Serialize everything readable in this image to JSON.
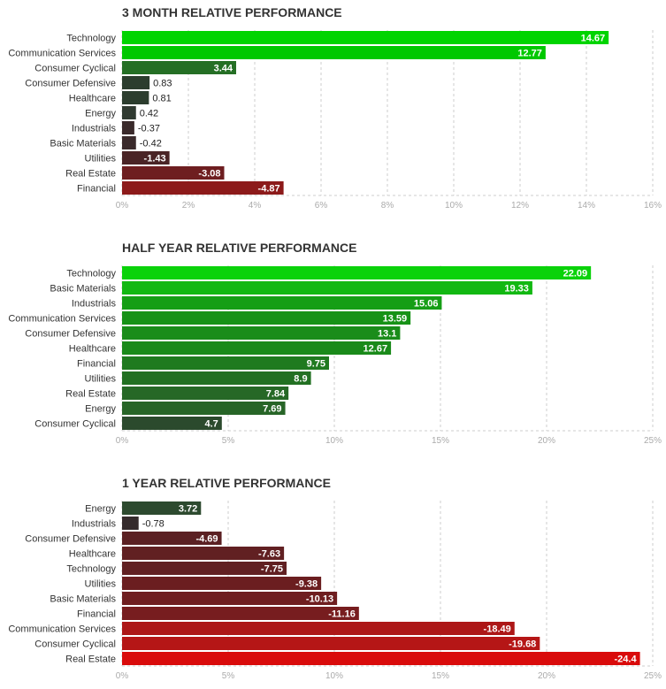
{
  "chart_data": [
    {
      "type": "bar",
      "orientation": "horizontal",
      "title": "3 MONTH RELATIVE PERFORMANCE",
      "categories": [
        "Technology",
        "Communication Services",
        "Consumer Cyclical",
        "Consumer Defensive",
        "Healthcare",
        "Energy",
        "Industrials",
        "Basic Materials",
        "Utilities",
        "Real Estate",
        "Financial"
      ],
      "values": [
        14.67,
        12.77,
        3.44,
        0.83,
        0.81,
        0.42,
        -0.37,
        -0.42,
        -1.43,
        -3.08,
        -4.87
      ],
      "value_labels": [
        "14.67",
        "12.77",
        "3.44",
        "0.83",
        "0.81",
        "0.42",
        "-0.37",
        "-0.42",
        "-1.43",
        "-3.08",
        "-4.87"
      ],
      "xlim": [
        0,
        16
      ],
      "xticks": [
        0,
        2,
        4,
        6,
        8,
        10,
        12,
        14,
        16
      ],
      "xtick_labels": [
        "0%",
        "2%",
        "4%",
        "6%",
        "8%",
        "10%",
        "12%",
        "14%",
        "16%"
      ],
      "colors": [
        "#00d400",
        "#00c800",
        "#256f25",
        "#2c3d2e",
        "#2c3d2e",
        "#303a31",
        "#3a2a2b",
        "#3a2a2b",
        "#4a2426",
        "#6e1e20",
        "#8c1a1a"
      ]
    },
    {
      "type": "bar",
      "orientation": "horizontal",
      "title": "HALF YEAR RELATIVE PERFORMANCE",
      "categories": [
        "Technology",
        "Basic Materials",
        "Industrials",
        "Communication Services",
        "Consumer Defensive",
        "Healthcare",
        "Financial",
        "Utilities",
        "Real Estate",
        "Energy",
        "Consumer Cyclical"
      ],
      "values": [
        22.09,
        19.33,
        15.06,
        13.59,
        13.1,
        12.67,
        9.75,
        8.9,
        7.84,
        7.69,
        4.7
      ],
      "value_labels": [
        "22.09",
        "19.33",
        "15.06",
        "13.59",
        "13.1",
        "12.67",
        "9.75",
        "8.9",
        "7.84",
        "7.69",
        "4.7"
      ],
      "xlim": [
        0,
        25
      ],
      "xticks": [
        0,
        5,
        10,
        15,
        20,
        25
      ],
      "xtick_labels": [
        "0%",
        "5%",
        "10%",
        "15%",
        "20%",
        "25%"
      ],
      "colors": [
        "#0ad20a",
        "#12b812",
        "#159e15",
        "#179217",
        "#1a8c1a",
        "#1a8a1a",
        "#1f7a1f",
        "#227022",
        "#266826",
        "#276527",
        "#2b4a2d"
      ]
    },
    {
      "type": "bar",
      "orientation": "horizontal",
      "title": "1 YEAR RELATIVE PERFORMANCE",
      "categories": [
        "Energy",
        "Industrials",
        "Consumer Defensive",
        "Healthcare",
        "Technology",
        "Utilities",
        "Basic Materials",
        "Financial",
        "Communication Services",
        "Consumer Cyclical",
        "Real Estate"
      ],
      "values": [
        3.72,
        -0.78,
        -4.69,
        -7.63,
        -7.75,
        -9.38,
        -10.13,
        -11.16,
        -18.49,
        -19.68,
        -24.4
      ],
      "value_labels": [
        "3.72",
        "-0.78",
        "-4.69",
        "-7.63",
        "-7.75",
        "-9.38",
        "-10.13",
        "-11.16",
        "-18.49",
        "-19.68",
        "-24.4"
      ],
      "xlim": [
        0,
        25
      ],
      "xticks": [
        0,
        5,
        10,
        15,
        20,
        25
      ],
      "xtick_labels": [
        "0%",
        "5%",
        "10%",
        "15%",
        "20%",
        "25%"
      ],
      "colors": [
        "#2d4a2f",
        "#352b2c",
        "#5b2023",
        "#612022",
        "#612022",
        "#6b1e20",
        "#6f1e20",
        "#771d1f",
        "#ad1717",
        "#b51616",
        "#d90b0b"
      ]
    }
  ]
}
